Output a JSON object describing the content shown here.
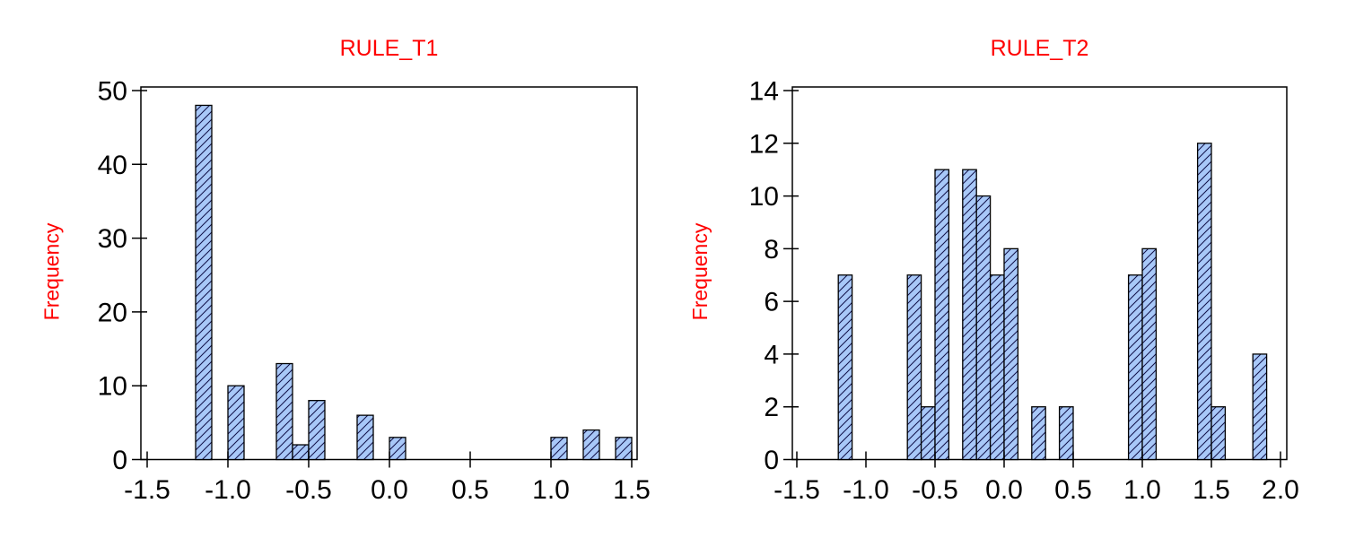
{
  "figure": {
    "background": "#FFFFFF",
    "description": "Two side-by-side frequency histograms with hatched blue bars"
  },
  "colors": {
    "title_text": "#FF0000",
    "axis_title_text": "#FF0000",
    "tick_label_text": "#000000",
    "axis_line": "#000000",
    "bar_fill": "#A8C8F8",
    "bar_hatch_line": "#101048",
    "bar_border": "#000000",
    "background": "#FFFFFF"
  },
  "chart_data": [
    {
      "type": "bar",
      "kind": "histogram",
      "title": "RULE_T1",
      "xlabel": "",
      "ylabel": "Frequency",
      "xlim": [
        -1.5,
        1.5
      ],
      "ylim": [
        0,
        50
      ],
      "x_tick_labels": [
        "-1.5",
        "-1.0",
        "-0.5",
        "0.0",
        "0.5",
        "1.0",
        "1.5"
      ],
      "y_tick_labels": [
        "0",
        "10",
        "20",
        "30",
        "40",
        "50"
      ],
      "bin_width": 0.1,
      "grid": false,
      "legend": false,
      "bins": [
        {
          "x0": -1.2,
          "x1": -1.1,
          "count": 48
        },
        {
          "x0": -1.0,
          "x1": -0.9,
          "count": 10
        },
        {
          "x0": -0.7,
          "x1": -0.6,
          "count": 13
        },
        {
          "x0": -0.6,
          "x1": -0.5,
          "count": 2
        },
        {
          "x0": -0.5,
          "x1": -0.4,
          "count": 8
        },
        {
          "x0": -0.2,
          "x1": -0.1,
          "count": 6
        },
        {
          "x0": 0.0,
          "x1": 0.1,
          "count": 3
        },
        {
          "x0": 1.0,
          "x1": 1.1,
          "count": 3
        },
        {
          "x0": 1.2,
          "x1": 1.3,
          "count": 4
        },
        {
          "x0": 1.4,
          "x1": 1.5,
          "count": 3
        }
      ]
    },
    {
      "type": "bar",
      "kind": "histogram",
      "title": "RULE_T2",
      "xlabel": "",
      "ylabel": "Frequency",
      "xlim": [
        -1.5,
        2.0
      ],
      "ylim": [
        0,
        14
      ],
      "x_tick_labels": [
        "-1.5",
        "-1.0",
        "-0.5",
        "0.0",
        "0.5",
        "1.0",
        "1.5",
        "2.0"
      ],
      "y_tick_labels": [
        "0",
        "2",
        "4",
        "6",
        "8",
        "10",
        "12",
        "14"
      ],
      "bin_width": 0.1,
      "grid": false,
      "legend": false,
      "bins": [
        {
          "x0": -1.2,
          "x1": -1.1,
          "count": 7
        },
        {
          "x0": -0.7,
          "x1": -0.6,
          "count": 7
        },
        {
          "x0": -0.6,
          "x1": -0.5,
          "count": 2
        },
        {
          "x0": -0.5,
          "x1": -0.4,
          "count": 11
        },
        {
          "x0": -0.3,
          "x1": -0.2,
          "count": 11
        },
        {
          "x0": -0.2,
          "x1": -0.1,
          "count": 10
        },
        {
          "x0": -0.1,
          "x1": 0.0,
          "count": 7
        },
        {
          "x0": 0.0,
          "x1": 0.1,
          "count": 8
        },
        {
          "x0": 0.2,
          "x1": 0.3,
          "count": 2
        },
        {
          "x0": 0.4,
          "x1": 0.5,
          "count": 2
        },
        {
          "x0": 0.9,
          "x1": 1.0,
          "count": 7
        },
        {
          "x0": 1.0,
          "x1": 1.1,
          "count": 8
        },
        {
          "x0": 1.4,
          "x1": 1.5,
          "count": 12
        },
        {
          "x0": 1.5,
          "x1": 1.6,
          "count": 2
        },
        {
          "x0": 1.8,
          "x1": 1.9,
          "count": 4
        }
      ]
    }
  ]
}
